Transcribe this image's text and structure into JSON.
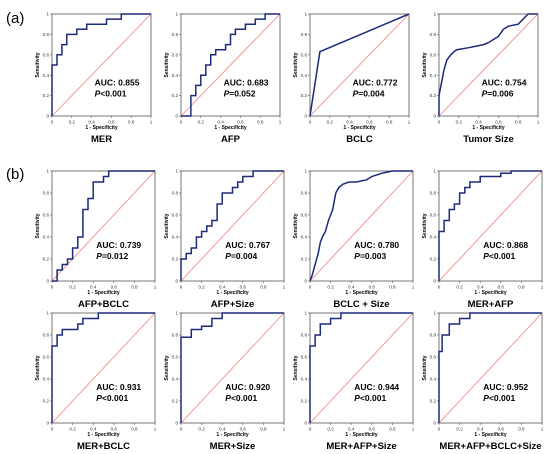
{
  "panel_labels": {
    "a": "(a)",
    "b": "(b)"
  },
  "colors": {
    "roc_curve": "#1c2a7a",
    "reference_line": "#f08080",
    "axes": "#555555"
  },
  "chart_data": [
    {
      "type": "line",
      "panel": "a",
      "name": "MER",
      "auc_text": "AUC: 0.855",
      "p_text": "P<0.001",
      "xlabel": "1 - Specificity",
      "ylabel": "Sensitivity",
      "xlim": [
        0,
        1
      ],
      "ylim": [
        0,
        1
      ],
      "x": [
        0,
        0,
        0.05,
        0.05,
        0.1,
        0.1,
        0.15,
        0.15,
        0.25,
        0.25,
        0.35,
        0.35,
        0.55,
        0.55,
        0.7,
        0.7,
        1
      ],
      "y": [
        0,
        0.5,
        0.5,
        0.6,
        0.6,
        0.7,
        0.7,
        0.8,
        0.8,
        0.85,
        0.85,
        0.9,
        0.9,
        0.95,
        0.95,
        1,
        1
      ]
    },
    {
      "type": "line",
      "panel": "a",
      "name": "AFP",
      "auc_text": "AUC: 0.683",
      "p_text": "P=0.052",
      "xlabel": "1 - Specificity",
      "ylabel": "Sensitivity",
      "xlim": [
        0,
        1
      ],
      "ylim": [
        0,
        1
      ],
      "x": [
        0,
        0.1,
        0.1,
        0.15,
        0.15,
        0.2,
        0.2,
        0.25,
        0.25,
        0.3,
        0.3,
        0.35,
        0.35,
        0.45,
        0.45,
        0.5,
        0.5,
        0.55,
        0.55,
        0.65,
        0.65,
        0.75,
        0.75,
        0.85,
        0.85,
        1
      ],
      "y": [
        0,
        0,
        0.2,
        0.2,
        0.3,
        0.3,
        0.4,
        0.4,
        0.5,
        0.5,
        0.6,
        0.6,
        0.65,
        0.65,
        0.7,
        0.7,
        0.8,
        0.8,
        0.85,
        0.85,
        0.9,
        0.9,
        0.95,
        0.95,
        1,
        1
      ]
    },
    {
      "type": "line",
      "panel": "a",
      "name": "BCLC",
      "auc_text": "AUC: 0.772",
      "p_text": "P=0.004",
      "xlabel": "1 - Specificity",
      "ylabel": "Sensitivity",
      "xlim": [
        0,
        1
      ],
      "ylim": [
        0,
        1
      ],
      "x": [
        0,
        0.1,
        1
      ],
      "y": [
        0,
        0.63,
        1
      ]
    },
    {
      "type": "line",
      "panel": "a",
      "name": "Tumor Size",
      "auc_text": "AUC: 0.754",
      "p_text": "P=0.006",
      "xlabel": "1 - Specificity",
      "ylabel": "Sensitivity",
      "xlim": [
        0,
        1
      ],
      "ylim": [
        0,
        1
      ],
      "x": [
        0,
        0,
        0.03,
        0.05,
        0.08,
        0.12,
        0.15,
        0.18,
        0.3,
        0.45,
        0.5,
        0.55,
        0.6,
        0.65,
        0.7,
        0.8,
        0.85,
        0.9,
        1
      ],
      "y": [
        0,
        0.2,
        0.35,
        0.45,
        0.55,
        0.6,
        0.63,
        0.65,
        0.67,
        0.7,
        0.72,
        0.75,
        0.78,
        0.85,
        0.88,
        0.9,
        0.95,
        1,
        1
      ]
    },
    {
      "type": "line",
      "panel": "b",
      "name": "AFP+BCLC",
      "auc_text": "AUC: 0.739",
      "p_text": "P=0.012",
      "xlabel": "1 - Specificity",
      "ylabel": "Sensitivity",
      "xlim": [
        0,
        1
      ],
      "ylim": [
        0,
        1
      ],
      "x": [
        0,
        0.05,
        0.05,
        0.1,
        0.1,
        0.15,
        0.15,
        0.2,
        0.2,
        0.25,
        0.25,
        0.3,
        0.3,
        0.35,
        0.35,
        0.4,
        0.4,
        0.5,
        0.5,
        0.55,
        0.55,
        0.65,
        0.65,
        1
      ],
      "y": [
        0,
        0,
        0.1,
        0.1,
        0.15,
        0.15,
        0.2,
        0.2,
        0.3,
        0.3,
        0.4,
        0.4,
        0.65,
        0.65,
        0.75,
        0.75,
        0.9,
        0.9,
        0.95,
        0.95,
        1,
        1,
        1,
        1
      ]
    },
    {
      "type": "line",
      "panel": "b",
      "name": "AFP+Size",
      "auc_text": "AUC: 0.767",
      "p_text": "P=0.004",
      "xlabel": "1 - Specificity",
      "ylabel": "Sensitivity",
      "xlim": [
        0,
        1
      ],
      "ylim": [
        0,
        1
      ],
      "x": [
        0,
        0,
        0.05,
        0.05,
        0.1,
        0.1,
        0.15,
        0.15,
        0.2,
        0.2,
        0.25,
        0.25,
        0.3,
        0.3,
        0.35,
        0.35,
        0.4,
        0.4,
        0.5,
        0.5,
        0.55,
        0.55,
        0.6,
        0.6,
        0.7,
        0.7,
        0.8,
        0.8,
        1
      ],
      "y": [
        0,
        0.2,
        0.2,
        0.25,
        0.25,
        0.3,
        0.3,
        0.4,
        0.4,
        0.45,
        0.45,
        0.5,
        0.5,
        0.55,
        0.55,
        0.7,
        0.7,
        0.8,
        0.8,
        0.85,
        0.85,
        0.9,
        0.9,
        0.95,
        0.95,
        1,
        1,
        1,
        1
      ]
    },
    {
      "type": "line",
      "panel": "b",
      "name": "BCLC + Size",
      "auc_text": "AUC: 0.780",
      "p_text": "P=0.003",
      "xlabel": "1 - Specificity",
      "ylabel": "Sensitivity",
      "xlim": [
        0,
        1
      ],
      "ylim": [
        0,
        1
      ],
      "x": [
        0,
        0.02,
        0.05,
        0.08,
        0.1,
        0.12,
        0.15,
        0.18,
        0.22,
        0.25,
        0.28,
        0.32,
        0.38,
        0.45,
        0.55,
        0.6,
        0.7,
        0.8,
        1
      ],
      "y": [
        0,
        0.05,
        0.15,
        0.25,
        0.35,
        0.4,
        0.45,
        0.55,
        0.65,
        0.8,
        0.85,
        0.88,
        0.9,
        0.9,
        0.92,
        0.95,
        0.98,
        1,
        1
      ]
    },
    {
      "type": "line",
      "panel": "b",
      "name": "MER+AFP",
      "auc_text": "AUC: 0.868",
      "p_text": "P<0.001",
      "xlabel": "1 - Specificity",
      "ylabel": "Sensitivity",
      "xlim": [
        0,
        1
      ],
      "ylim": [
        0,
        1
      ],
      "x": [
        0,
        0,
        0.05,
        0.05,
        0.1,
        0.1,
        0.15,
        0.15,
        0.2,
        0.2,
        0.25,
        0.25,
        0.3,
        0.3,
        0.4,
        0.4,
        0.6,
        0.6,
        0.7,
        0.7,
        1
      ],
      "y": [
        0,
        0.45,
        0.45,
        0.55,
        0.55,
        0.65,
        0.65,
        0.7,
        0.7,
        0.8,
        0.8,
        0.85,
        0.85,
        0.9,
        0.9,
        0.95,
        0.95,
        0.98,
        0.98,
        1,
        1
      ]
    },
    {
      "type": "line",
      "panel": "b",
      "name": "MER+BCLC",
      "auc_text": "AUC: 0.931",
      "p_text": "P<0.001",
      "xlabel": "1 - Specificity",
      "ylabel": "Sensitivity",
      "xlim": [
        0,
        1
      ],
      "ylim": [
        0,
        1
      ],
      "x": [
        0,
        0,
        0.05,
        0.05,
        0.1,
        0.1,
        0.25,
        0.25,
        0.3,
        0.3,
        0.45,
        0.45,
        1
      ],
      "y": [
        0,
        0.7,
        0.7,
        0.8,
        0.8,
        0.85,
        0.85,
        0.9,
        0.9,
        0.95,
        0.95,
        1,
        1
      ]
    },
    {
      "type": "line",
      "panel": "b",
      "name": "MER+Size",
      "auc_text": "AUC: 0.920",
      "p_text": "P<0.001",
      "xlabel": "1 - Specificity",
      "ylabel": "Sensitivity",
      "xlim": [
        0,
        1
      ],
      "ylim": [
        0,
        1
      ],
      "x": [
        0,
        0,
        0.1,
        0.1,
        0.2,
        0.2,
        0.3,
        0.3,
        0.4,
        0.4,
        1
      ],
      "y": [
        0,
        0.78,
        0.78,
        0.85,
        0.85,
        0.88,
        0.88,
        0.95,
        0.95,
        1,
        1
      ]
    },
    {
      "type": "line",
      "panel": "b",
      "name": "MER+AFP+Size",
      "auc_text": "AUC: 0.944",
      "p_text": "P<0.001",
      "xlabel": "1 - Specificity",
      "ylabel": "Sensitivity",
      "xlim": [
        0,
        1
      ],
      "ylim": [
        0,
        1
      ],
      "x": [
        0,
        0,
        0.05,
        0.05,
        0.1,
        0.1,
        0.2,
        0.2,
        0.3,
        0.3,
        1
      ],
      "y": [
        0,
        0.7,
        0.7,
        0.8,
        0.8,
        0.9,
        0.9,
        0.95,
        0.95,
        1,
        1
      ]
    },
    {
      "type": "line",
      "panel": "b",
      "name": "MER+AFP+BCLC+Size",
      "auc_text": "AUC: 0.952",
      "p_text": "P<0.001",
      "xlabel": "1 - Specificity",
      "ylabel": "Sensitivity",
      "xlim": [
        0,
        1
      ],
      "ylim": [
        0,
        1
      ],
      "x": [
        0,
        0,
        0.03,
        0.03,
        0.1,
        0.1,
        0.2,
        0.2,
        0.3,
        0.3,
        1
      ],
      "y": [
        0,
        0.65,
        0.65,
        0.8,
        0.8,
        0.9,
        0.9,
        0.95,
        0.95,
        1,
        1
      ]
    }
  ]
}
